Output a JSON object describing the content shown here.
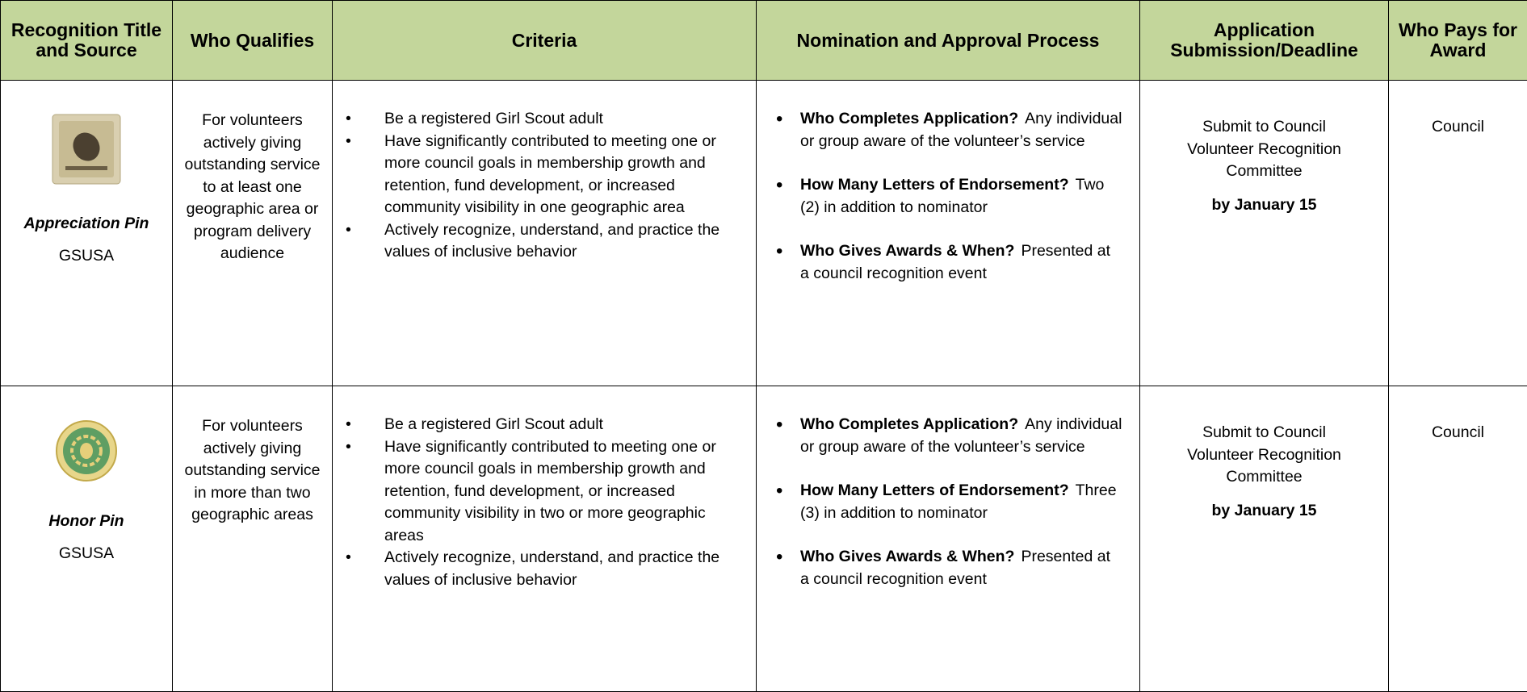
{
  "table": {
    "headers": [
      "Recognition Title and Source",
      "Who Qualifies",
      "Criteria",
      "Nomination and Approval Process",
      "Application Submission/Deadline",
      "Who Pays for Award"
    ],
    "rows": [
      {
        "title": "Appreciation Pin",
        "source": "GSUSA",
        "who_qualifies": "For volunteers actively giving outstanding service to at least one geographic area or program delivery audience",
        "criteria": [
          "Be a registered Girl Scout adult",
          "Have significantly contributed to meeting one or more council goals in membership growth and retention, fund development, or increased community visibility in one geographic area",
          "Actively recognize, understand, and practice the values of inclusive behavior"
        ],
        "process": [
          {
            "question": "Who Completes Application?",
            "answer": "Any individual or group aware of the volunteer’s service"
          },
          {
            "question": "How Many Letters of Endorsement?",
            "answer": "Two (2) in addition to nominator"
          },
          {
            "question": "Who Gives Awards & When?",
            "answer": "Presented at a council recognition event"
          }
        ],
        "submission": "Submit to Council Volunteer Recognition Committee",
        "deadline": "by January 15",
        "who_pays": "Council"
      },
      {
        "title": "Honor Pin",
        "source": "GSUSA",
        "who_qualifies": "For volunteers actively giving outstanding service in more than two geographic areas",
        "criteria": [
          "Be a registered Girl Scout adult",
          "Have significantly contributed to meeting one or more council goals in membership growth and retention, fund development, or increased community visibility in two or more geographic areas",
          "Actively recognize, understand, and practice the values of inclusive behavior"
        ],
        "process": [
          {
            "question": "Who Completes Application?",
            "answer": "Any individual or group aware of the volunteer’s service"
          },
          {
            "question": "How Many Letters of Endorsement?",
            "answer": "Three (3) in addition to nominator"
          },
          {
            "question": "Who Gives Awards & When?",
            "answer": "Presented at a council recognition event"
          }
        ],
        "submission": "Submit to Council Volunteer Recognition Committee",
        "deadline": "by January 15",
        "who_pays": "Council"
      }
    ]
  }
}
